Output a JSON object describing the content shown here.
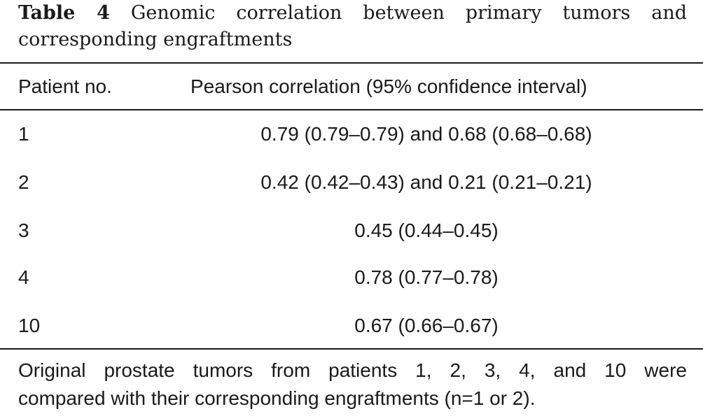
{
  "caption": {
    "label": "Table 4",
    "text_line1": "Genomic correlation between primary tumors and",
    "text_line2": "corresponding engraftments"
  },
  "table": {
    "headers": [
      "Patient no.",
      "Pearson correlation (95% confidence interval)"
    ],
    "rows": [
      {
        "patient": "1",
        "correlation": "0.79 (0.79–0.79) and 0.68 (0.68–0.68)"
      },
      {
        "patient": "2",
        "correlation": "0.42 (0.42–0.43) and 0.21 (0.21–0.21)"
      },
      {
        "patient": "3",
        "correlation": "0.45 (0.44–0.45)"
      },
      {
        "patient": "4",
        "correlation": "0.78 (0.77–0.78)"
      },
      {
        "patient": "10",
        "correlation": "0.67 (0.66–0.67)"
      }
    ]
  },
  "footnote": {
    "line1": "Original prostate tumors from patients 1, 2, 3, 4, and 10 were",
    "line2": "compared with their corresponding engraftments (n=1 or 2)."
  }
}
